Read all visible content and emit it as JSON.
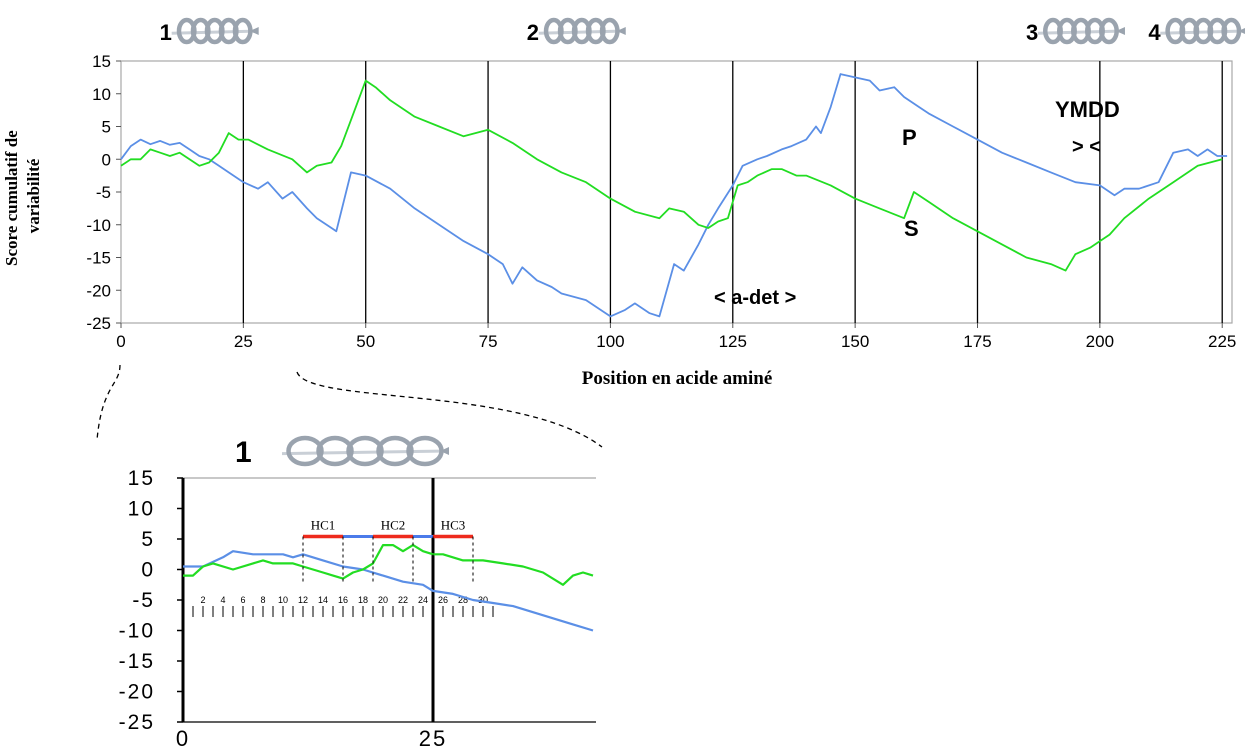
{
  "colors": {
    "series_P": "#5b8fe6",
    "series_S": "#22dd22",
    "hc_bar": "#ee2b1d",
    "hc_link": "#4b7bea",
    "axis": "#000000",
    "frame": "#a8a8a8",
    "helix": "#9aa3ae"
  },
  "icons": {
    "helix": "alpha-helix-icon"
  },
  "chart_data": [
    {
      "type": "line",
      "title": "",
      "xlabel": "Position en acide aminé",
      "ylabel": "Score cumulatif de variabilité",
      "xlim": [
        0,
        227
      ],
      "ylim": [
        -25,
        15
      ],
      "grid": "vertical lines at x = 25, 50, 75, 100, 125, 150, 175, 200, 225",
      "x_ticks": [
        "0",
        "25",
        "50",
        "75",
        "100",
        "125",
        "150",
        "175",
        "200",
        "225"
      ],
      "y_ticks": [
        "15",
        "10",
        "5",
        "0",
        "-5",
        "-10",
        "-15",
        "-20",
        "-25"
      ],
      "helix_labels": [
        {
          "label": "1",
          "x": 3
        },
        {
          "label": "2",
          "x": 78
        },
        {
          "label": "3",
          "x": 180
        },
        {
          "label": "4",
          "x": 205
        }
      ],
      "annotations": {
        "P": "P",
        "S": "S",
        "a_det": "< a-det >",
        "ymdd": "YMDD",
        "ymdd_arrows": "> <"
      },
      "series": [
        {
          "name": "P",
          "x": [
            0,
            2,
            4,
            6,
            8,
            10,
            12,
            14,
            16,
            18,
            20,
            22,
            25,
            28,
            30,
            33,
            35,
            38,
            40,
            43,
            44,
            47,
            50,
            55,
            60,
            65,
            70,
            75,
            78,
            80,
            82,
            85,
            88,
            90,
            95,
            100,
            103,
            105,
            108,
            110,
            113,
            115,
            118,
            120,
            122,
            125,
            127,
            130,
            132,
            135,
            137,
            140,
            142,
            143,
            145,
            147,
            150,
            153,
            155,
            158,
            160,
            163,
            165,
            170,
            175,
            180,
            185,
            190,
            195,
            200,
            203,
            205,
            208,
            212,
            215,
            218,
            220,
            222,
            224,
            226
          ],
          "values": [
            0,
            2,
            3,
            2.3,
            2.8,
            2.2,
            2.5,
            1.5,
            0.5,
            0,
            -1,
            -2,
            -3.5,
            -4.5,
            -3.5,
            -6,
            -5,
            -7.5,
            -9,
            -10.5,
            -11,
            -2,
            -2.5,
            -4.5,
            -7.5,
            -10,
            -12.5,
            -14.5,
            -16,
            -19,
            -16.5,
            -18.5,
            -19.5,
            -20.5,
            -21.5,
            -24,
            -23,
            -22,
            -23.5,
            -24,
            -16,
            -17,
            -13,
            -10,
            -7.5,
            -4,
            -1,
            0,
            0.5,
            1.5,
            2,
            3,
            5,
            4,
            8,
            13,
            12.5,
            12,
            10.5,
            11,
            9.5,
            8,
            7,
            5,
            3,
            1,
            -0.5,
            -2,
            -3.5,
            -4,
            -5.5,
            -4.5,
            -4.5,
            -3.5,
            1,
            1.5,
            0.5,
            1.5,
            0.5,
            0.5
          ]
        },
        {
          "name": "S",
          "x": [
            0,
            2,
            4,
            6,
            8,
            10,
            12,
            14,
            16,
            18,
            20,
            22,
            24,
            26,
            30,
            35,
            38,
            40,
            43,
            45,
            47,
            50,
            52,
            55,
            60,
            65,
            70,
            75,
            80,
            85,
            90,
            95,
            100,
            105,
            110,
            112,
            115,
            118,
            120,
            122,
            124,
            126,
            128,
            130,
            133,
            135,
            138,
            140,
            145,
            150,
            155,
            160,
            162,
            165,
            170,
            175,
            180,
            185,
            190,
            193,
            195,
            198,
            200,
            202,
            205,
            210,
            215,
            220,
            225
          ],
          "values": [
            -1,
            0,
            0,
            1.5,
            1,
            0.5,
            1,
            0,
            -1,
            -0.5,
            1,
            4,
            3,
            3,
            1.5,
            0,
            -2,
            -1,
            -0.5,
            2,
            6,
            12,
            11,
            9,
            6.5,
            5,
            3.5,
            4.5,
            2.5,
            0,
            -2,
            -3.5,
            -6,
            -8,
            -9,
            -7.5,
            -8,
            -10,
            -10.5,
            -9.5,
            -9,
            -4,
            -3.5,
            -2.5,
            -1.5,
            -1.5,
            -2.5,
            -2.5,
            -4,
            -6,
            -7.5,
            -9,
            -5,
            -6.5,
            -9,
            -11,
            -13,
            -15,
            -16,
            -17,
            -14.5,
            -13.5,
            -12.5,
            -11.5,
            -9,
            -6,
            -3.5,
            -1,
            0
          ]
        }
      ]
    },
    {
      "type": "line",
      "title": "",
      "xlabel": "",
      "ylabel": "",
      "xlim": [
        0,
        41
      ],
      "ylim": [
        -25,
        15
      ],
      "x_ticks": [
        "0",
        "25"
      ],
      "y_ticks": [
        "15",
        "10",
        "5",
        "0",
        "-5",
        "-10",
        "-15",
        "-20",
        "-25"
      ],
      "helix_label": "1",
      "residue_ticks": [
        "2",
        "4",
        "6",
        "8",
        "10",
        "12",
        "14",
        "16",
        "18",
        "20",
        "22",
        "24",
        "26",
        "28",
        "30"
      ],
      "regions": [
        {
          "name": "HC1",
          "start": 12,
          "end": 16
        },
        {
          "name": "HC2",
          "start": 19,
          "end": 23
        },
        {
          "name": "HC3",
          "start": 25,
          "end": 29
        }
      ],
      "series": [
        {
          "name": "P",
          "x": [
            0,
            2,
            4,
            5,
            7,
            9,
            10,
            11,
            12,
            14,
            16,
            18,
            20,
            22,
            24,
            25,
            27,
            29,
            31,
            33,
            35,
            37,
            39,
            41
          ],
          "values": [
            0.5,
            0.5,
            2,
            3,
            2.5,
            2.5,
            2.5,
            2,
            2.5,
            1.5,
            0.5,
            0,
            -1,
            -2,
            -2.5,
            -3.5,
            -4,
            -5,
            -5.5,
            -6,
            -7,
            -8,
            -9,
            -10
          ]
        },
        {
          "name": "S",
          "x": [
            0,
            1,
            2,
            3,
            5,
            7,
            8,
            9,
            11,
            12,
            14,
            15,
            16,
            17,
            18,
            19,
            20,
            21,
            22,
            23,
            24,
            25,
            26,
            28,
            30,
            32,
            34,
            36,
            38,
            39,
            40,
            41
          ],
          "values": [
            -1,
            -1,
            0.5,
            1,
            0,
            1,
            1.5,
            1,
            1,
            0.5,
            -0.5,
            -1,
            -1.5,
            -0.5,
            0,
            1,
            4,
            4,
            3,
            4,
            3,
            2.5,
            2.5,
            1.5,
            1.5,
            1,
            0.5,
            -0.5,
            -2.5,
            -1,
            -0.5,
            -1
          ]
        }
      ]
    }
  ]
}
